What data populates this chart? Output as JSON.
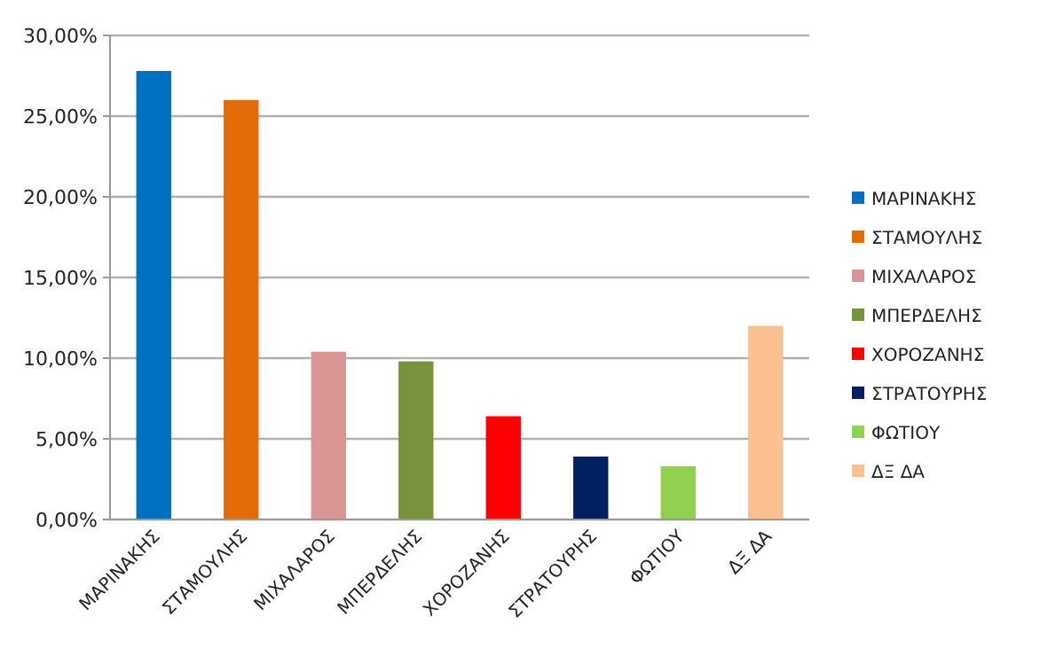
{
  "chart_data": {
    "type": "bar",
    "stacked": true,
    "categories": [
      "ΜΑΡΙΝΑΚΗΣ",
      "ΣΤΑΜΟΥΛΗΣ",
      "ΜΙΧΑΛΑΡΟΣ",
      "ΜΠΕΡΔΕΛΗΣ",
      "ΧΟΡΟΖΑΝΗΣ",
      "ΣΤΡΑΤΟΥΡΗΣ",
      "ΦΩΤΙΟΥ",
      "ΔΞ ΔΑ"
    ],
    "series": [
      {
        "name": "ΜΑΡΙΝΑΚΗΣ",
        "color": "#0070c0",
        "values": [
          27.8,
          null,
          null,
          null,
          null,
          null,
          null,
          null
        ]
      },
      {
        "name": "ΣΤΑΜΟΥΛΗΣ",
        "color": "#e36c09",
        "values": [
          null,
          26.0,
          null,
          null,
          null,
          null,
          null,
          null
        ]
      },
      {
        "name": "ΜΙΧΑΛΑΡΟΣ",
        "color": "#d99694",
        "values": [
          null,
          null,
          10.4,
          null,
          null,
          null,
          null,
          null
        ]
      },
      {
        "name": "ΜΠΕΡΔΕΛΗΣ",
        "color": "#77933c",
        "values": [
          null,
          null,
          null,
          9.8,
          null,
          null,
          null,
          null
        ]
      },
      {
        "name": "ΧΟΡΟΖΑΝΗΣ",
        "color": "#ff0000",
        "values": [
          null,
          null,
          null,
          null,
          6.4,
          null,
          null,
          null
        ]
      },
      {
        "name": "ΣΤΡΑΤΟΥΡΗΣ",
        "color": "#002060",
        "values": [
          null,
          null,
          null,
          null,
          null,
          3.9,
          null,
          null
        ]
      },
      {
        "name": "ΦΩΤΙΟΥ",
        "color": "#92d050",
        "values": [
          null,
          null,
          null,
          null,
          null,
          null,
          3.3,
          null
        ]
      },
      {
        "name": "ΔΞ ΔΑ",
        "color": "#fac090",
        "values": [
          null,
          null,
          null,
          null,
          null,
          null,
          null,
          12.0
        ]
      }
    ],
    "ylim": [
      0,
      30
    ],
    "yticks": [
      {
        "value": 0,
        "label": "0,00%"
      },
      {
        "value": 5,
        "label": "5,00%"
      },
      {
        "value": 10,
        "label": "10,00%"
      },
      {
        "value": 15,
        "label": "15,00%"
      },
      {
        "value": 20,
        "label": "20,00%"
      },
      {
        "value": 25,
        "label": "25,00%"
      },
      {
        "value": 30,
        "label": "30,00%"
      }
    ],
    "grid": "y",
    "legend": "right"
  }
}
